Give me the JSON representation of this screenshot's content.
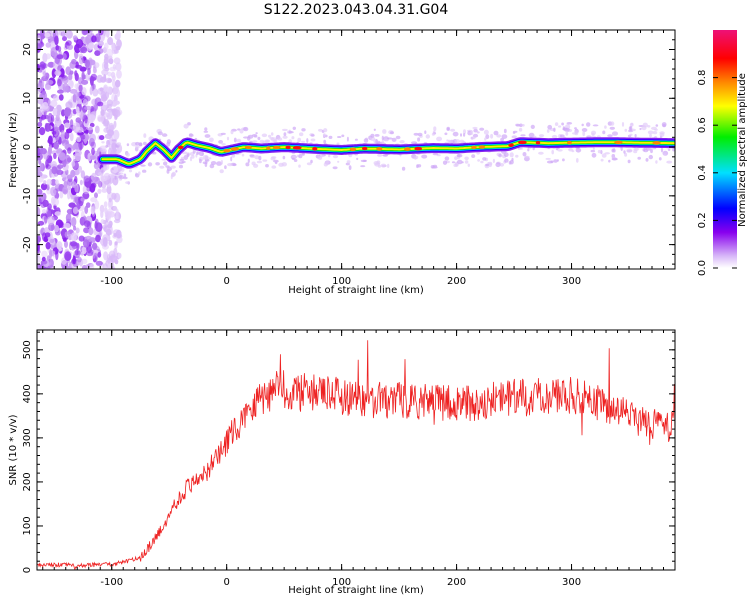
{
  "figure_title": "S122.2023.043.04.31.G04",
  "colors": {
    "snr_line": "#ee2222",
    "axes": "#000000",
    "background": "#ffffff"
  },
  "chart_data": [
    {
      "type": "heatmap",
      "title": "",
      "xlabel": "Height of straight line (km)",
      "ylabel": "Frequency (Hz)",
      "xlim": [
        -165,
        390
      ],
      "ylim": [
        -25,
        24
      ],
      "x_ticks": [
        -100,
        0,
        100,
        200,
        300
      ],
      "y_ticks": [
        -20,
        -10,
        0,
        10,
        20
      ],
      "colorbar": {
        "label": "Normalized spectral amplitude",
        "range": [
          0.0,
          1.0
        ],
        "ticks": [
          0.0,
          0.2,
          0.4,
          0.6,
          0.8
        ],
        "colormap": [
          "#ffffff",
          "#d8b8f8",
          "#8800ee",
          "#0000ff",
          "#00e0ff",
          "#00ee00",
          "#ffff00",
          "#ff8800",
          "#ff0000",
          "#ee1177"
        ]
      },
      "noise_region_x": [
        -165,
        -100
      ],
      "ridge": {
        "x": [
          -110,
          -95,
          -85,
          -75,
          -70,
          -62,
          -55,
          -48,
          -42,
          -35,
          -25,
          -15,
          -5,
          5,
          15,
          30,
          50,
          80,
          100,
          120,
          150,
          180,
          200,
          220,
          245,
          255,
          280,
          300,
          330,
          360,
          390
        ],
        "freq": [
          -2.5,
          -2.5,
          -3.5,
          -2.5,
          -1.0,
          0.8,
          -0.5,
          -2.2,
          -0.5,
          1.0,
          0.3,
          -0.2,
          -1.0,
          -0.5,
          0.0,
          -0.3,
          0.0,
          -0.4,
          -0.6,
          -0.3,
          -0.5,
          -0.2,
          -0.3,
          0.0,
          0.2,
          1.0,
          0.8,
          0.9,
          1.0,
          0.9,
          0.8
        ]
      }
    },
    {
      "type": "line",
      "title": "",
      "xlabel": "Height of straight line (km)",
      "ylabel": "SNR (10 * v/v)",
      "xlim": [
        -165,
        390
      ],
      "ylim": [
        0,
        545
      ],
      "x_ticks": [
        -100,
        0,
        100,
        200,
        300
      ],
      "y_ticks": [
        0,
        100,
        200,
        300,
        400,
        500
      ],
      "series": [
        {
          "x": [
            -165,
            -150,
            -130,
            -110,
            -95,
            -85,
            -75,
            -65,
            -55,
            -45,
            -35,
            -25,
            -15,
            -5,
            5,
            15,
            25,
            35,
            45,
            60,
            80,
            100,
            130,
            160,
            190,
            220,
            240,
            260,
            280,
            300,
            320,
            340,
            360,
            375,
            390
          ],
          "values": [
            10,
            12,
            10,
            12,
            15,
            20,
            30,
            60,
            100,
            150,
            185,
            210,
            230,
            265,
            310,
            350,
            385,
            400,
            410,
            405,
            400,
            395,
            385,
            385,
            378,
            380,
            390,
            392,
            395,
            395,
            382,
            362,
            340,
            330,
            325
          ]
        }
      ]
    }
  ]
}
